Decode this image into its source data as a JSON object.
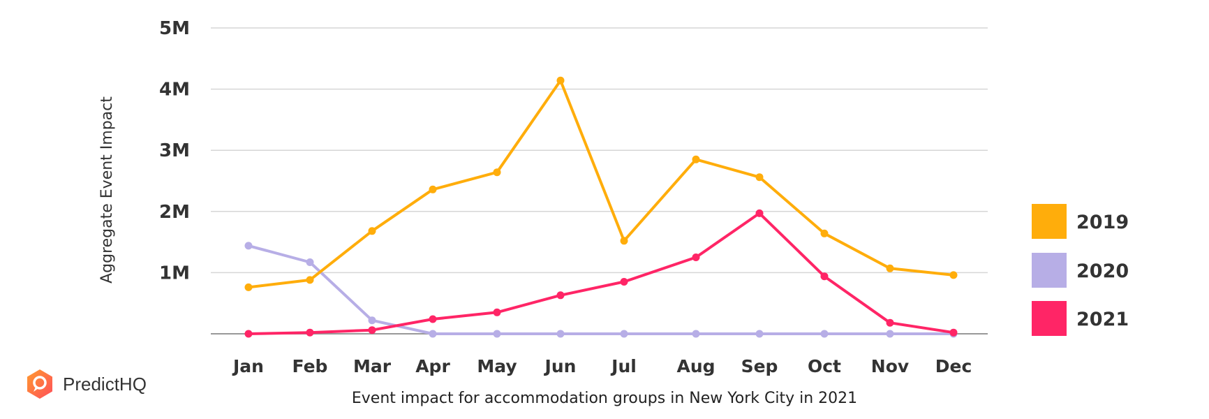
{
  "brand": {
    "name": "PredictHQ",
    "logo_colors": [
      "#ff4f5a",
      "#ff9a2e"
    ]
  },
  "caption": "Event impact for accommodation groups in New York City in 2021",
  "chart_data": {
    "type": "line",
    "title": "",
    "xlabel": "",
    "ylabel": "Aggregate Event Impact",
    "categories": [
      "Jan",
      "Feb",
      "Mar",
      "Apr",
      "May",
      "Jun",
      "Jul",
      "Aug",
      "Sep",
      "Oct",
      "Nov",
      "Dec"
    ],
    "ylim": [
      0,
      5000000
    ],
    "yticks": [
      {
        "value": 1000000,
        "label": "1M"
      },
      {
        "value": 2000000,
        "label": "2M"
      },
      {
        "value": 3000000,
        "label": "3M"
      },
      {
        "value": 4000000,
        "label": "4M"
      },
      {
        "value": 5000000,
        "label": "5M"
      }
    ],
    "grid": true,
    "legend_position": "right",
    "series": [
      {
        "name": "2019",
        "color": "#ffad0b",
        "values": [
          760000,
          880000,
          1680000,
          2360000,
          2640000,
          4140000,
          1520000,
          2850000,
          2560000,
          1640000,
          1070000,
          960000
        ]
      },
      {
        "name": "2020",
        "color": "#b7aee6",
        "values": [
          1440000,
          1170000,
          220000,
          0,
          0,
          0,
          0,
          0,
          0,
          0,
          0,
          0
        ]
      },
      {
        "name": "2021",
        "color": "#ff2566",
        "values": [
          0,
          20000,
          60000,
          240000,
          350000,
          630000,
          850000,
          1250000,
          1970000,
          940000,
          180000,
          20000
        ]
      }
    ]
  }
}
